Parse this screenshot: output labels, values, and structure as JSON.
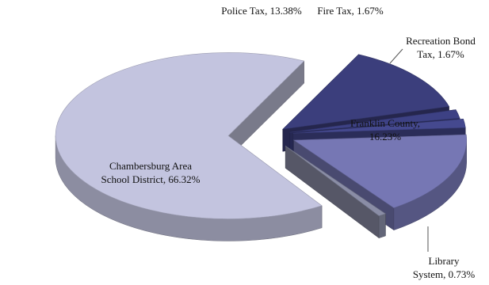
{
  "chart_data": {
    "type": "pie",
    "title": "",
    "slices": [
      {
        "name": "Police Tax",
        "label": "Police Tax, 13.38%",
        "value": 13.38,
        "color": "#3b3e7c"
      },
      {
        "name": "Fire Tax",
        "label": "Fire Tax, 1.67%",
        "value": 1.67,
        "color": "#3d4184"
      },
      {
        "name": "Recreation Bond Tax",
        "label": [
          "Recreation Bond",
          "Tax, 1.67%"
        ],
        "value": 1.67,
        "color": "#45498f"
      },
      {
        "name": "Franklin County",
        "label": [
          "Franklin County,",
          "16.23%"
        ],
        "value": 16.23,
        "color": "#7677b4"
      },
      {
        "name": "Library System",
        "label": [
          "Library",
          "System, 0.73%"
        ],
        "value": 0.73,
        "color": "#8a8da6"
      },
      {
        "name": "Chambersburg Area School District",
        "label": [
          "Chambersburg Area",
          "School District, 66.32%"
        ],
        "value": 66.32,
        "color": "#c3c4df"
      }
    ]
  }
}
